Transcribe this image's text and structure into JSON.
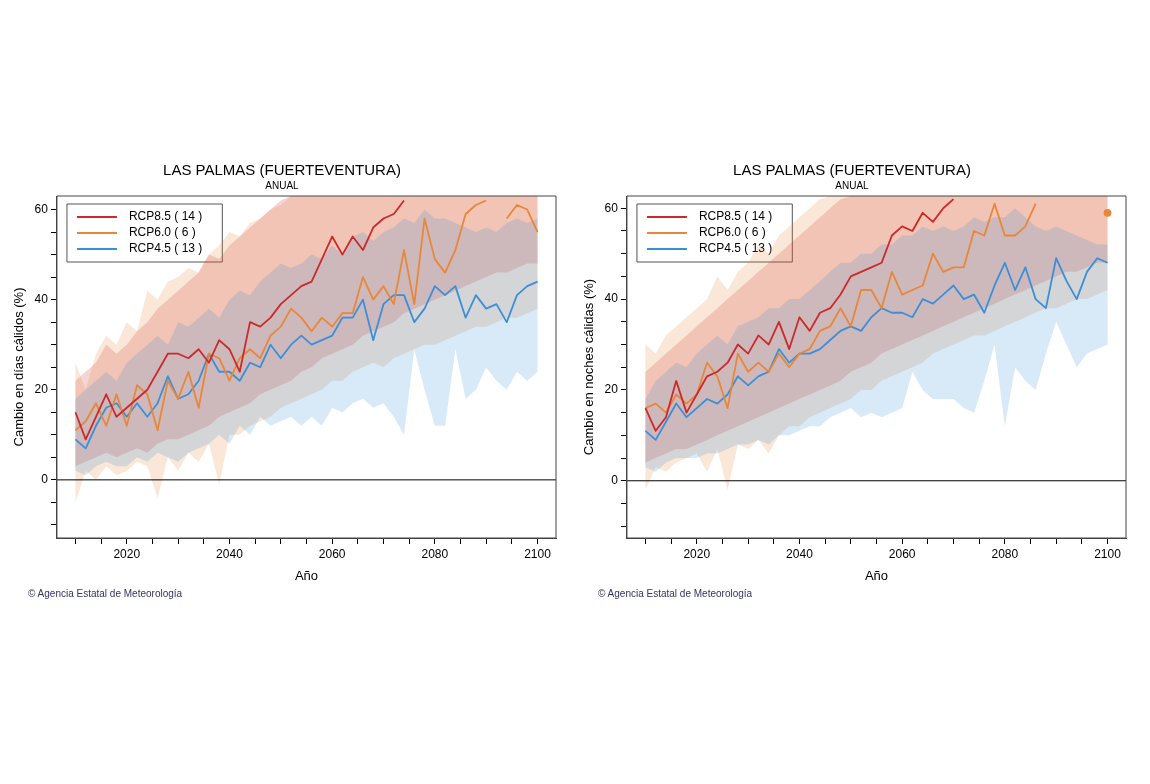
{
  "chart_data": [
    {
      "type": "line",
      "title": "LAS PALMAS (FUERTEVENTURA)",
      "subtitle": "ANUAL",
      "xlabel": "Año",
      "ylabel": "Cambio en días cálidos (%)",
      "annotations": [
        "© Agencia Estatal de Meteorología"
      ],
      "x": [
        2010,
        2012,
        2014,
        2016,
        2018,
        2020,
        2022,
        2024,
        2026,
        2028,
        2030,
        2032,
        2034,
        2036,
        2038,
        2040,
        2042,
        2044,
        2046,
        2048,
        2050,
        2052,
        2054,
        2056,
        2058,
        2060,
        2062,
        2064,
        2066,
        2068,
        2070,
        2072,
        2074,
        2076,
        2078,
        2080,
        2082,
        2084,
        2086,
        2088,
        2090,
        2092,
        2094,
        2096,
        2098,
        2100
      ],
      "xlim": [
        2006.4,
        2103.6
      ],
      "ylim": [
        -12.9,
        63
      ],
      "xticks": [
        {
          "value": 2010,
          "label": null
        },
        {
          "value": 2015,
          "label": null
        },
        2020,
        {
          "value": 2025,
          "label": null
        },
        {
          "value": 2030,
          "label": null
        },
        {
          "value": 2035,
          "label": null
        },
        2040,
        {
          "value": 2045,
          "label": null
        },
        {
          "value": 2050,
          "label": null
        },
        {
          "value": 2055,
          "label": null
        },
        2060,
        {
          "value": 2065,
          "label": null
        },
        {
          "value": 2070,
          "label": null
        },
        {
          "value": 2075,
          "label": null
        },
        2080,
        {
          "value": 2085,
          "label": null
        },
        {
          "value": 2090,
          "label": null
        },
        {
          "value": 2095,
          "label": null
        },
        2100
      ],
      "yticks": [
        {
          "value": -10,
          "label": null
        },
        {
          "value": -5,
          "label": null
        },
        0,
        {
          "value": 5,
          "label": null
        },
        {
          "value": 10,
          "label": null
        },
        {
          "value": 15,
          "label": null
        },
        20,
        {
          "value": 25,
          "label": null
        },
        {
          "value": 30,
          "label": null
        },
        {
          "value": 35,
          "label": null
        },
        40,
        {
          "value": 45,
          "label": null
        },
        {
          "value": 50,
          "label": null
        },
        {
          "value": 55,
          "label": null
        },
        60
      ],
      "legend": "top left",
      "marker": "none",
      "line_style": "solid",
      "ref_lines": [
        {
          "axis": "y",
          "value": 0,
          "color": "#000000"
        }
      ],
      "series": [
        {
          "name": "RCP8.5 ( 14 )",
          "color": "#cc2a2a",
          "values": [
            15,
            9,
            14,
            19,
            14,
            16,
            18,
            20,
            24,
            28,
            28,
            27,
            29,
            26,
            31,
            29,
            24,
            35,
            34,
            36,
            39,
            41,
            43,
            44,
            49,
            54,
            50,
            54,
            51,
            56,
            58,
            59,
            62,
            null,
            null,
            null,
            null,
            null,
            null,
            null,
            null,
            null,
            null,
            null,
            null,
            null
          ],
          "lower": [
            3,
            4,
            5,
            6,
            5,
            6,
            7,
            6,
            8,
            9,
            9,
            10,
            11,
            12,
            14,
            15,
            16,
            17,
            19,
            20,
            21,
            22,
            24,
            25,
            27,
            28,
            29,
            30,
            32,
            33,
            34,
            35,
            37,
            38,
            39,
            40,
            41,
            42,
            43,
            44,
            45,
            46,
            46,
            47,
            48,
            48
          ],
          "upper": [
            22,
            24,
            26,
            30,
            28,
            30,
            33,
            35,
            38,
            40,
            42,
            44,
            46,
            50,
            49,
            52,
            54,
            56,
            58,
            60,
            62,
            63,
            63,
            63,
            63,
            63,
            63,
            63,
            63,
            63,
            63,
            63,
            63,
            63,
            63,
            63,
            63,
            63,
            63,
            63,
            63,
            63,
            63,
            63,
            63,
            63
          ]
        },
        {
          "name": "RCP6.0 ( 6 )",
          "color": "#e8863a",
          "values": [
            11,
            13,
            17,
            12,
            19,
            12,
            21,
            19,
            11,
            22,
            18,
            24,
            16,
            28,
            27,
            22,
            27,
            29,
            27,
            32,
            34,
            38,
            36,
            33,
            36,
            34,
            37,
            37,
            45,
            40,
            43,
            39,
            51,
            39,
            58,
            49,
            46,
            51,
            59,
            61,
            62,
            null,
            58,
            61,
            60,
            55
          ],
          "lower": [
            -5,
            2,
            0,
            3,
            1,
            2,
            4,
            3,
            -4,
            5,
            2,
            6,
            4,
            8,
            -1,
            10,
            10,
            12,
            13,
            14,
            16,
            17,
            18,
            19,
            20,
            22,
            22,
            24,
            25,
            26,
            25,
            27,
            28,
            29,
            30,
            30,
            31,
            32,
            33,
            34,
            34,
            35,
            36,
            36,
            37,
            38
          ],
          "upper": [
            26,
            20,
            28,
            32,
            30,
            35,
            33,
            42,
            40,
            44,
            45,
            47,
            46,
            50,
            52,
            55,
            54,
            57,
            58,
            60,
            61,
            63,
            63,
            63,
            63,
            63,
            63,
            63,
            63,
            63,
            63,
            63,
            63,
            63,
            63,
            63,
            63,
            63,
            63,
            63,
            63,
            63,
            63,
            63,
            63,
            63
          ]
        },
        {
          "name": "RCP4.5 ( 13 )",
          "color": "#3b8fd9",
          "values": [
            9,
            7,
            12,
            16,
            17,
            14,
            17,
            14,
            17,
            23,
            18,
            19,
            22,
            28,
            24,
            24,
            22,
            26,
            25,
            30,
            27,
            30,
            32,
            30,
            31,
            32,
            36,
            36,
            40,
            31,
            39,
            41,
            41,
            35,
            38,
            43,
            41,
            43,
            36,
            41,
            38,
            39,
            35,
            41,
            43,
            44
          ],
          "lower": [
            2,
            1,
            3,
            4,
            3,
            3,
            5,
            4,
            6,
            5,
            4,
            6,
            7,
            8,
            10,
            8,
            12,
            10,
            14,
            12,
            13,
            14,
            12,
            14,
            12,
            16,
            15,
            17,
            18,
            16,
            17,
            14,
            10,
            29,
            20,
            12,
            12,
            29,
            18,
            20,
            25,
            22,
            20,
            24,
            22,
            24
          ],
          "upper": [
            18,
            20,
            22,
            24,
            22,
            26,
            28,
            30,
            32,
            30,
            35,
            34,
            36,
            38,
            36,
            40,
            42,
            41,
            44,
            46,
            48,
            47,
            48,
            50,
            49,
            52,
            50,
            54,
            55,
            53,
            55,
            56,
            58,
            57,
            60,
            58,
            58,
            57,
            56,
            55,
            56,
            55,
            57,
            58,
            57,
            58
          ]
        }
      ]
    },
    {
      "type": "line",
      "title": "LAS PALMAS (FUERTEVENTURA)",
      "subtitle": "ANUAL",
      "xlabel": "Año",
      "ylabel": "Cambio en noches cálidas (%)",
      "annotations": [
        "© Agencia Estatal de Meteorología"
      ],
      "x": [
        2010,
        2012,
        2014,
        2016,
        2018,
        2020,
        2022,
        2024,
        2026,
        2028,
        2030,
        2032,
        2034,
        2036,
        2038,
        2040,
        2042,
        2044,
        2046,
        2048,
        2050,
        2052,
        2054,
        2056,
        2058,
        2060,
        2062,
        2064,
        2066,
        2068,
        2070,
        2072,
        2074,
        2076,
        2078,
        2080,
        2082,
        2084,
        2086,
        2088,
        2090,
        2092,
        2094,
        2096,
        2098,
        2100
      ],
      "xlim": [
        2006.4,
        2103.6
      ],
      "ylim": [
        -12.6,
        62.7
      ],
      "xticks": [
        {
          "value": 2010,
          "label": null
        },
        {
          "value": 2015,
          "label": null
        },
        2020,
        {
          "value": 2025,
          "label": null
        },
        {
          "value": 2030,
          "label": null
        },
        {
          "value": 2035,
          "label": null
        },
        2040,
        {
          "value": 2045,
          "label": null
        },
        {
          "value": 2050,
          "label": null
        },
        {
          "value": 2055,
          "label": null
        },
        2060,
        {
          "value": 2065,
          "label": null
        },
        {
          "value": 2070,
          "label": null
        },
        {
          "value": 2075,
          "label": null
        },
        2080,
        {
          "value": 2085,
          "label": null
        },
        {
          "value": 2090,
          "label": null
        },
        {
          "value": 2095,
          "label": null
        },
        2100
      ],
      "yticks": [
        {
          "value": -10,
          "label": null
        },
        {
          "value": -5,
          "label": null
        },
        0,
        {
          "value": 5,
          "label": null
        },
        {
          "value": 10,
          "label": null
        },
        {
          "value": 15,
          "label": null
        },
        20,
        {
          "value": 25,
          "label": null
        },
        {
          "value": 30,
          "label": null
        },
        {
          "value": 35,
          "label": null
        },
        40,
        {
          "value": 45,
          "label": null
        },
        {
          "value": 50,
          "label": null
        },
        {
          "value": 55,
          "label": null
        },
        60
      ],
      "legend": "top left",
      "marker": "none",
      "line_style": "solid",
      "ref_lines": [
        {
          "axis": "y",
          "value": 0,
          "color": "#000000"
        }
      ],
      "series": [
        {
          "name": "RCP8.5 ( 14 )",
          "color": "#cc2a2a",
          "values": [
            16,
            11,
            14,
            22,
            15,
            19,
            23,
            24,
            26,
            30,
            28,
            32,
            30,
            35,
            29,
            36,
            33,
            37,
            38,
            41,
            45,
            46,
            47,
            48,
            54,
            56,
            55,
            59,
            57,
            60,
            62,
            null,
            null,
            null,
            null,
            null,
            null,
            null,
            null,
            null,
            null,
            null,
            null,
            null,
            null,
            null
          ],
          "lower": [
            4,
            5,
            6,
            7,
            7,
            8,
            9,
            10,
            11,
            12,
            13,
            14,
            15,
            16,
            17,
            18,
            19,
            20,
            21,
            22,
            24,
            25,
            26,
            28,
            29,
            30,
            31,
            32,
            33,
            34,
            35,
            36,
            37,
            38,
            39,
            40,
            41,
            42,
            43,
            44,
            45,
            46,
            46,
            47,
            48,
            48
          ],
          "upper": [
            24,
            26,
            28,
            30,
            32,
            34,
            36,
            38,
            40,
            42,
            44,
            46,
            48,
            50,
            52,
            54,
            56,
            58,
            60,
            62,
            62.7,
            62.7,
            62.7,
            62.7,
            62.7,
            62.7,
            62.7,
            62.7,
            62.7,
            62.7,
            62.7,
            62.7,
            62.7,
            62.7,
            62.7,
            62.7,
            62.7,
            62.7,
            62.7,
            62.7,
            62.7,
            62.7,
            62.7,
            62.7,
            62.7,
            62.7
          ]
        },
        {
          "name": "RCP6.0 ( 6 )",
          "color": "#e8863a",
          "values": [
            16,
            17,
            15,
            19,
            17,
            19,
            26,
            23,
            16,
            28,
            24,
            26,
            24,
            28,
            25,
            28,
            29,
            33,
            34,
            38,
            34,
            42,
            42,
            38,
            46,
            41,
            42,
            43,
            50,
            46,
            47,
            47,
            55,
            54,
            61,
            54,
            54,
            56,
            61,
            null,
            null,
            null,
            null,
            null,
            null,
            59
          ],
          "lower": [
            -2,
            3,
            2,
            4,
            5,
            6,
            2,
            7,
            -2,
            8,
            7,
            9,
            6,
            10,
            12,
            12,
            14,
            15,
            16,
            17,
            18,
            20,
            20,
            22,
            23,
            24,
            25,
            26,
            28,
            29,
            30,
            31,
            32,
            32,
            33,
            34,
            35,
            36,
            37,
            38,
            38,
            39,
            40,
            40,
            41,
            42
          ],
          "upper": [
            30,
            28,
            32,
            34,
            36,
            38,
            40,
            45,
            42,
            46,
            48,
            52,
            50,
            54,
            56,
            58,
            60,
            62,
            62.7,
            62.7,
            62.7,
            62.7,
            62.7,
            62.7,
            62.7,
            62.7,
            62.7,
            62.7,
            62.7,
            62.7,
            62.7,
            62.7,
            62.7,
            62.7,
            62.7,
            62.7,
            62.7,
            62.7,
            62.7,
            62.7,
            62.7,
            62.7,
            62.7,
            62.7,
            62.7,
            62.7
          ]
        },
        {
          "name": "RCP4.5 ( 13 )",
          "color": "#3b8fd9",
          "values": [
            11,
            9,
            13,
            17,
            14,
            16,
            18,
            17,
            19,
            23,
            21,
            23,
            24,
            29,
            26,
            28,
            28,
            29,
            31,
            33,
            34,
            33,
            36,
            38,
            37,
            37,
            36,
            40,
            39,
            41,
            43,
            40,
            41,
            37,
            43,
            48,
            42,
            47,
            40,
            38,
            49,
            44,
            40,
            46,
            49,
            48
          ],
          "lower": [
            3,
            2,
            4,
            5,
            5,
            5,
            6,
            6,
            7,
            8,
            8,
            9,
            8,
            10,
            10,
            11,
            12,
            12,
            14,
            15,
            16,
            14,
            15,
            14,
            15,
            16,
            24,
            20,
            18,
            18,
            18,
            16,
            15,
            22,
            30,
            12,
            25,
            22,
            20,
            28,
            35,
            30,
            25,
            28,
            29,
            30
          ],
          "upper": [
            18,
            22,
            24,
            26,
            25,
            28,
            30,
            32,
            30,
            34,
            35,
            36,
            38,
            38,
            40,
            40,
            42,
            44,
            46,
            48,
            48,
            50,
            50,
            52,
            52,
            54,
            54,
            56,
            55,
            56,
            55,
            56,
            58,
            57,
            58,
            58,
            60,
            58,
            56,
            55,
            56,
            55,
            54,
            53,
            52,
            52
          ]
        }
      ]
    }
  ]
}
